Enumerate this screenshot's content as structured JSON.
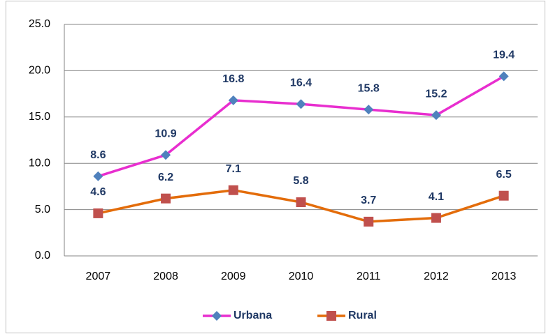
{
  "chart_data": {
    "type": "line",
    "categories": [
      "2007",
      "2008",
      "2009",
      "2010",
      "2011",
      "2012",
      "2013"
    ],
    "series": [
      {
        "name": "Urbana",
        "color": "#e82ecf",
        "marker": "diamond",
        "marker_color": "#4f81bd",
        "values": [
          8.6,
          10.9,
          16.8,
          16.4,
          15.8,
          15.2,
          19.4
        ]
      },
      {
        "name": "Rural",
        "color": "#e36c0a",
        "marker": "square",
        "marker_color": "#c0504d",
        "values": [
          4.6,
          6.2,
          7.1,
          5.8,
          3.7,
          4.1,
          6.5
        ]
      }
    ],
    "ylim": [
      0,
      25
    ],
    "yticks": [
      {
        "value": 0,
        "label": "0.0"
      },
      {
        "value": 5,
        "label": "5.0"
      },
      {
        "value": 10,
        "label": "10.0"
      },
      {
        "value": 15,
        "label": "15.0"
      },
      {
        "value": 20,
        "label": "20.0"
      },
      {
        "value": 25,
        "label": "25.0"
      }
    ],
    "grid": true,
    "legend": "bottom"
  }
}
